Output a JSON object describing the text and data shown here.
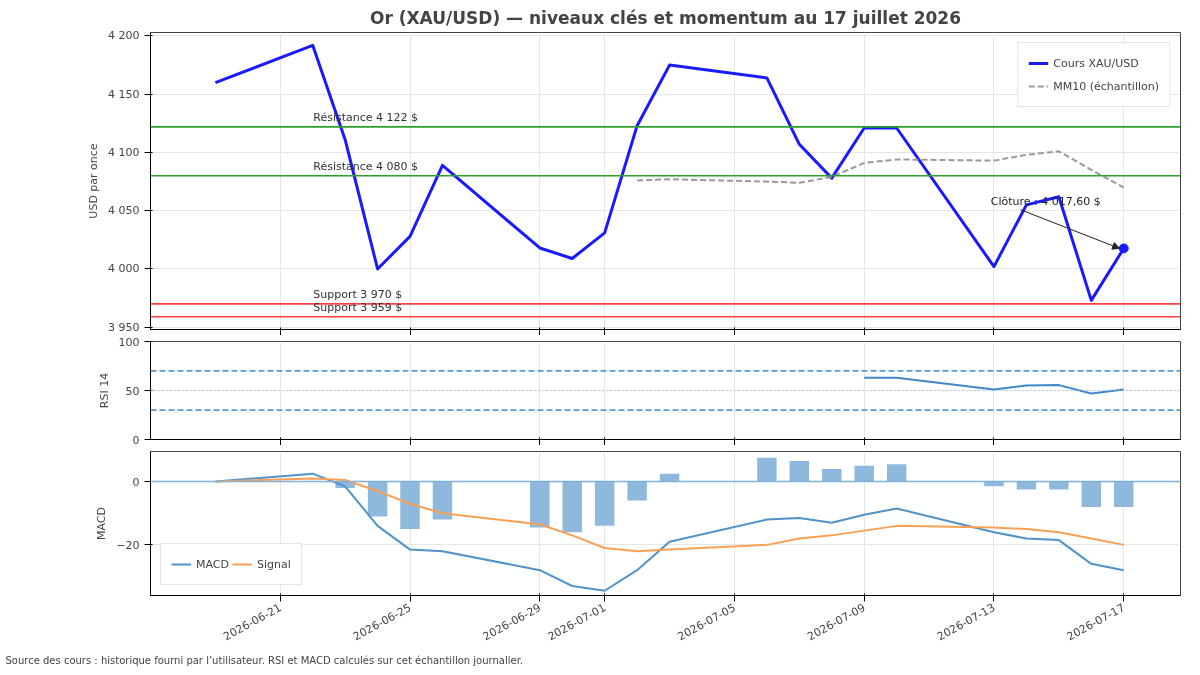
{
  "chart_data": [
    {
      "type": "line",
      "title": "Or (XAU/USD) — niveaux clés et momentum au 17 juillet 2026",
      "ylabel": "USD par once",
      "xlim": [
        "2026-06-17",
        "2026-07-18T18:00"
      ],
      "xticks": [
        "2026-06-21",
        "2026-06-25",
        "2026-06-29",
        "2026-07-01",
        "2026-07-05",
        "2026-07-09",
        "2026-07-13",
        "2026-07-17"
      ],
      "ylim": [
        3948,
        4203
      ],
      "yticks": [
        {
          "value": 3950,
          "label": "3 950"
        },
        {
          "value": 4000,
          "label": "4 000"
        },
        {
          "value": 4050,
          "label": "4 050"
        },
        {
          "value": 4100,
          "label": "4 100"
        },
        {
          "value": 4150,
          "label": "4 150"
        },
        {
          "value": 4200,
          "label": "4 200"
        }
      ],
      "tick_labels": "y",
      "grid": true,
      "legend": "top right",
      "series": [
        {
          "name": "Cours XAU/USD",
          "color": "#1a1aff",
          "line_style": "solid",
          "x": [
            "2026-06-19",
            "2026-06-22",
            "2026-06-23",
            "2026-06-24",
            "2026-06-25",
            "2026-06-26",
            "2026-06-29",
            "2026-06-30",
            "2026-07-01",
            "2026-07-02",
            "2026-07-03",
            "2026-07-06",
            "2026-07-07",
            "2026-07-08",
            "2026-07-09",
            "2026-07-10",
            "2026-07-13",
            "2026-07-14",
            "2026-07-15",
            "2026-07-16",
            "2026-07-17"
          ],
          "values": [
            4160,
            4192,
            4111,
            4000,
            4028,
            4089,
            4018,
            4009,
            4031,
            4123,
            4175,
            4164,
            4107,
            4078,
            4121,
            4121,
            4002,
            4055,
            4062,
            3973,
            4017.6
          ]
        },
        {
          "name": "MM10 (échantillon)",
          "color": "#999999",
          "line_style": "dashed",
          "x": [
            "2026-07-02",
            "2026-07-03",
            "2026-07-06",
            "2026-07-07",
            "2026-07-08",
            "2026-07-09",
            "2026-07-10",
            "2026-07-13",
            "2026-07-14",
            "2026-07-15",
            "2026-07-16",
            "2026-07-17"
          ],
          "values": [
            4076,
            4077,
            4075,
            4074,
            4079,
            4091,
            4094,
            4093,
            4098,
            4101,
            4085,
            4070
          ]
        },
        {
          "type": "scatter",
          "marker": "circle",
          "color": "#1a1aff",
          "x": [
            "2026-07-17"
          ],
          "values": [
            4017.6
          ]
        }
      ],
      "ref_lines": [
        {
          "axis": "y",
          "value": 4122,
          "label": "Résistance 4 122 $",
          "color": "#2ca02c"
        },
        {
          "axis": "y",
          "value": 4080,
          "label": "Résistance 4 080 $",
          "color": "#2ca02c"
        },
        {
          "axis": "y",
          "value": 3970,
          "label": "Support 3 970 $",
          "color": "#ff4040"
        },
        {
          "axis": "y",
          "value": 3959,
          "label": "Support 3 959 $",
          "color": "#ff4040"
        }
      ],
      "annotations": [
        {
          "text": "Clôture : 4 017,60 $",
          "x": "2026-07-17",
          "y": 4017.6
        }
      ]
    },
    {
      "type": "line",
      "ylabel": "RSI 14",
      "xlim": [
        "2026-06-17",
        "2026-07-18T18:00"
      ],
      "xticks": [
        "2026-06-21",
        "2026-06-25",
        "2026-06-29",
        "2026-07-01",
        "2026-07-05",
        "2026-07-09",
        "2026-07-13",
        "2026-07-17"
      ],
      "ylim": [
        0,
        100
      ],
      "yticks": [
        0,
        50,
        100
      ],
      "tick_labels": "y",
      "grid": true,
      "series": [
        {
          "color": "#3f88c5",
          "x": [
            "2026-07-09",
            "2026-07-10",
            "2026-07-13",
            "2026-07-14",
            "2026-07-15",
            "2026-07-16",
            "2026-07-17"
          ],
          "values": [
            63,
            63,
            51,
            55,
            55.5,
            47,
            51
          ]
        }
      ],
      "ref_lines": [
        {
          "axis": "y",
          "value": 70,
          "color": "#5a9bd0",
          "line_style": "dashed"
        },
        {
          "axis": "y",
          "value": 50,
          "color": "#a9c8e6",
          "line_style": "dotted"
        },
        {
          "axis": "y",
          "value": 30,
          "color": "#5a9bd0",
          "line_style": "dashed"
        }
      ]
    },
    {
      "type": "line",
      "ylabel": "MACD",
      "xlim": [
        "2026-06-17",
        "2026-07-18T18:00"
      ],
      "xticks": [
        "2026-06-21",
        "2026-06-25",
        "2026-06-29",
        "2026-07-01",
        "2026-07-05",
        "2026-07-09",
        "2026-07-13",
        "2026-07-17"
      ],
      "ylim": [
        -36,
        9.5
      ],
      "yticks": [
        {
          "value": -20,
          "label": "−20"
        },
        0
      ],
      "grid": true,
      "legend": "bottom left",
      "series": [
        {
          "type": "bar",
          "color": "#8fb9dc",
          "x": [
            "2026-06-23",
            "2026-06-24",
            "2026-06-25",
            "2026-06-26",
            "2026-06-29",
            "2026-06-30",
            "2026-07-01",
            "2026-07-02",
            "2026-07-03",
            "2026-07-06",
            "2026-07-07",
            "2026-07-08",
            "2026-07-09",
            "2026-07-10",
            "2026-07-13",
            "2026-07-14",
            "2026-07-15",
            "2026-07-16",
            "2026-07-17"
          ],
          "values": [
            -2,
            -11,
            -15,
            -12,
            -14.5,
            -16,
            -14,
            -6,
            2.5,
            7.5,
            6.5,
            4,
            5,
            5.5,
            -1.5,
            -2.5,
            -2.5,
            -8,
            -8
          ]
        },
        {
          "name": "MACD",
          "color": "#4f93c9",
          "line_style": "solid",
          "x": [
            "2026-06-19",
            "2026-06-22",
            "2026-06-23",
            "2026-06-24",
            "2026-06-25",
            "2026-06-26",
            "2026-06-29",
            "2026-06-30",
            "2026-07-01",
            "2026-07-02",
            "2026-07-03",
            "2026-07-06",
            "2026-07-07",
            "2026-07-08",
            "2026-07-09",
            "2026-07-10",
            "2026-07-13",
            "2026-07-14",
            "2026-07-15",
            "2026-07-16",
            "2026-07-17"
          ],
          "values": [
            0,
            2.5,
            -1.5,
            -14,
            -21.5,
            -22,
            -28,
            -33,
            -34.5,
            -28,
            -19,
            -12,
            -11.5,
            -13,
            -10.5,
            -8.5,
            -16,
            -18,
            -18.5,
            -26,
            -28
          ]
        },
        {
          "name": "Signal",
          "color": "#f9a054",
          "line_style": "solid",
          "x": [
            "2026-06-19",
            "2026-06-22",
            "2026-06-23",
            "2026-06-24",
            "2026-06-25",
            "2026-06-26",
            "2026-06-29",
            "2026-06-30",
            "2026-07-01",
            "2026-07-02",
            "2026-07-03",
            "2026-07-06",
            "2026-07-07",
            "2026-07-08",
            "2026-07-09",
            "2026-07-10",
            "2026-07-13",
            "2026-07-14",
            "2026-07-15",
            "2026-07-16",
            "2026-07-17"
          ],
          "values": [
            0,
            1,
            0.5,
            -3,
            -7,
            -10,
            -13.5,
            -17,
            -21,
            -22,
            -21.5,
            -20,
            -18,
            -17,
            -15.5,
            -14,
            -14.5,
            -15,
            -16,
            -18,
            -20
          ]
        }
      ],
      "ref_lines": [
        {
          "axis": "y",
          "value": 0,
          "color": "#7fb0da",
          "line_style": "solid"
        }
      ],
      "annotations": [
        "Source des cours : historique fourni par l’utilisateur. RSI et MACD calculés sur cet échantillon journalier."
      ]
    }
  ]
}
